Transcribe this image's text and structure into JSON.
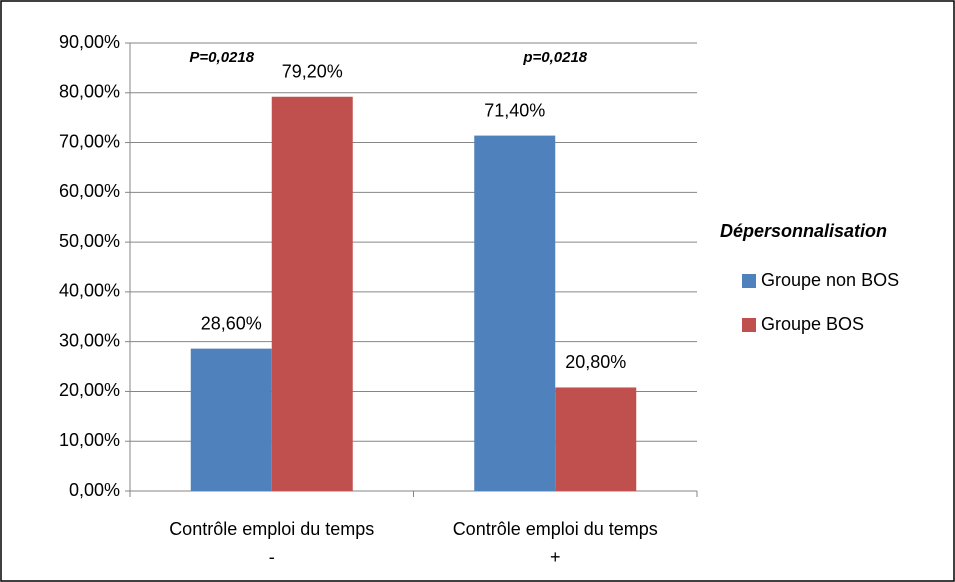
{
  "chart_data": {
    "type": "bar",
    "categories": [
      "Contrôle emploi du temps -",
      "Contrôle emploi du temps +"
    ],
    "series": [
      {
        "name": "Groupe non BOS",
        "color": "#4f81bd",
        "values": [
          28.6,
          71.4
        ],
        "value_labels": [
          "28,60%",
          "71,40%"
        ]
      },
      {
        "name": "Groupe BOS",
        "color": "#c0504d",
        "values": [
          79.2,
          20.8
        ],
        "value_labels": [
          "79,20%",
          "20,80%"
        ]
      }
    ],
    "ylim": [
      0,
      90
    ],
    "yticks": [
      {
        "value": 0,
        "label": "0,00%"
      },
      {
        "value": 10,
        "label": "10,00%"
      },
      {
        "value": 20,
        "label": "20,00%"
      },
      {
        "value": 30,
        "label": "30,00%"
      },
      {
        "value": 40,
        "label": "40,00%"
      },
      {
        "value": 50,
        "label": "50,00%"
      },
      {
        "value": 60,
        "label": "60,00%"
      },
      {
        "value": 70,
        "label": "70,00%"
      },
      {
        "value": 80,
        "label": "80,00%"
      },
      {
        "value": 90,
        "label": "90,00%"
      }
    ],
    "grid": true,
    "legend_title": "Dépersonnalisation",
    "legend_position": "right",
    "annotations": [
      "P=0,0218",
      "p=0,0218"
    ]
  }
}
